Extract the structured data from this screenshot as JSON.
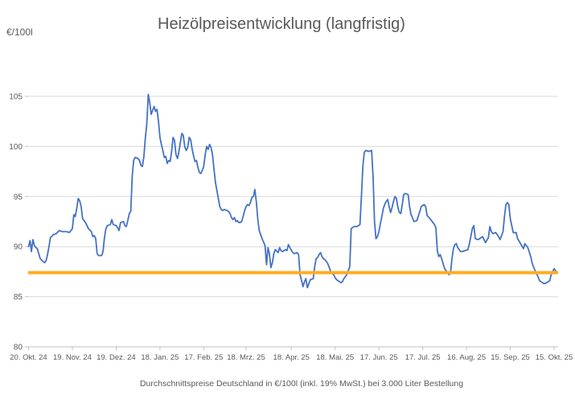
{
  "header": {
    "title": "Heizölpreisentwicklung (langfristig)",
    "y_axis_unit": "€/100l"
  },
  "footer": {
    "note": "Durchschnittspreise Deutschland in €/100l (inkl. 19% MwSt.) bei 3.000 Liter Bestellung"
  },
  "chart_data": {
    "type": "line",
    "title": "Heizölpreisentwicklung (langfristig)",
    "ylabel": "€/100l",
    "xlabel": "",
    "grid": "horizontal-only",
    "legend": "none",
    "ylim": [
      80,
      106.5
    ],
    "y_ticks": [
      80,
      85,
      90,
      95,
      100,
      105
    ],
    "x_tick_days": [
      0,
      30,
      60,
      90,
      120,
      149,
      180,
      210,
      240,
      270,
      300,
      330,
      360
    ],
    "x_tick_labels": [
      "20. Okt. 24",
      "19. Nov. 24",
      "19. Dez. 24",
      "18. Jan. 25",
      "17. Feb. 25",
      "18. Mrz. 25",
      "18. Apr. 25",
      "18. Mai. 25",
      "17. Jun. 25",
      "17. Jul. 25",
      "16. Aug. 25",
      "15. Sep. 25",
      "15. Okt. 25"
    ],
    "colors": {
      "series_line": "#4472C4",
      "threshold_line": "#FFAD21",
      "grid": "#D9D9D9",
      "axis": "#BFBFBF",
      "text": "#595959"
    },
    "threshold": {
      "value": 87.4
    },
    "series": [
      {
        "points": [
          [
            0,
            90.0
          ],
          [
            1,
            90.6
          ],
          [
            2,
            89.5
          ],
          [
            3,
            90.7
          ],
          [
            4,
            90.1
          ],
          [
            5,
            89.9
          ],
          [
            6,
            89.8
          ],
          [
            8,
            88.8
          ],
          [
            10,
            88.5
          ],
          [
            11,
            88.4
          ],
          [
            12,
            88.6
          ],
          [
            13,
            89.2
          ],
          [
            14,
            90.0
          ],
          [
            15,
            90.9
          ],
          [
            17,
            91.2
          ],
          [
            19,
            91.3
          ],
          [
            21,
            91.6
          ],
          [
            23,
            91.5
          ],
          [
            26,
            91.5
          ],
          [
            28,
            91.4
          ],
          [
            30,
            91.8
          ],
          [
            31,
            93.2
          ],
          [
            32,
            93.0
          ],
          [
            33,
            93.8
          ],
          [
            34,
            94.8
          ],
          [
            35,
            94.6
          ],
          [
            36,
            94.0
          ],
          [
            37,
            92.8
          ],
          [
            39,
            92.4
          ],
          [
            41,
            91.8
          ],
          [
            43,
            91.5
          ],
          [
            44,
            91.0
          ],
          [
            45,
            91.1
          ],
          [
            46,
            90.8
          ],
          [
            47,
            89.3
          ],
          [
            48,
            89.1
          ],
          [
            50,
            89.1
          ],
          [
            51,
            89.5
          ],
          [
            52,
            90.9
          ],
          [
            53,
            91.8
          ],
          [
            54,
            92.1
          ],
          [
            56,
            92.2
          ],
          [
            57,
            92.7
          ],
          [
            58,
            92.2
          ],
          [
            60,
            92.1
          ],
          [
            61,
            91.9
          ],
          [
            62,
            91.6
          ],
          [
            63,
            92.4
          ],
          [
            65,
            92.5
          ],
          [
            66,
            92.1
          ],
          [
            67,
            92.0
          ],
          [
            68,
            92.6
          ],
          [
            69,
            93.3
          ],
          [
            70,
            93.5
          ],
          [
            71,
            97.0
          ],
          [
            72,
            98.6
          ],
          [
            73,
            98.9
          ],
          [
            75,
            98.8
          ],
          [
            76,
            98.6
          ],
          [
            77,
            98.1
          ],
          [
            78,
            98.0
          ],
          [
            79,
            99.0
          ],
          [
            80,
            100.8
          ],
          [
            81,
            102.2
          ],
          [
            82,
            105.2
          ],
          [
            83,
            104.4
          ],
          [
            84,
            103.2
          ],
          [
            85,
            103.6
          ],
          [
            86,
            104.0
          ],
          [
            87,
            103.5
          ],
          [
            88,
            103.7
          ],
          [
            89,
            102.5
          ],
          [
            90,
            100.9
          ],
          [
            91,
            100.2
          ],
          [
            92,
            99.6
          ],
          [
            93,
            98.9
          ],
          [
            94,
            99.0
          ],
          [
            95,
            98.3
          ],
          [
            96,
            98.6
          ],
          [
            97,
            98.5
          ],
          [
            98,
            99.5
          ],
          [
            99,
            100.9
          ],
          [
            100,
            100.6
          ],
          [
            101,
            99.2
          ],
          [
            102,
            98.8
          ],
          [
            103,
            99.5
          ],
          [
            105,
            101.3
          ],
          [
            106,
            101.1
          ],
          [
            107,
            100.0
          ],
          [
            108,
            99.6
          ],
          [
            109,
            99.9
          ],
          [
            110,
            100.9
          ],
          [
            111,
            100.7
          ],
          [
            112,
            99.8
          ],
          [
            113,
            99.1
          ],
          [
            114,
            98.5
          ],
          [
            115,
            98.6
          ],
          [
            116,
            97.9
          ],
          [
            117,
            97.4
          ],
          [
            118,
            97.3
          ],
          [
            119,
            97.6
          ],
          [
            120,
            98.0
          ],
          [
            121,
            99.2
          ],
          [
            122,
            100.0
          ],
          [
            123,
            99.7
          ],
          [
            124,
            100.2
          ],
          [
            125,
            99.9
          ],
          [
            126,
            99.2
          ],
          [
            127,
            97.8
          ],
          [
            128,
            96.4
          ],
          [
            129,
            95.6
          ],
          [
            130,
            94.8
          ],
          [
            131,
            94.0
          ],
          [
            132,
            93.7
          ],
          [
            133,
            93.6
          ],
          [
            134,
            93.7
          ],
          [
            136,
            93.6
          ],
          [
            137,
            93.5
          ],
          [
            138,
            93.3
          ],
          [
            139,
            92.9
          ],
          [
            140,
            92.7
          ],
          [
            141,
            92.9
          ],
          [
            142,
            92.5
          ],
          [
            143,
            92.6
          ],
          [
            144,
            92.4
          ],
          [
            145,
            92.4
          ],
          [
            146,
            92.5
          ],
          [
            147,
            93.0
          ],
          [
            148,
            93.6
          ],
          [
            149,
            94.0
          ],
          [
            150,
            94.2
          ],
          [
            151,
            94.1
          ],
          [
            152,
            94.4
          ],
          [
            153,
            94.9
          ],
          [
            154,
            95.0
          ],
          [
            155,
            95.7
          ],
          [
            156,
            94.5
          ],
          [
            157,
            92.8
          ],
          [
            158,
            91.6
          ],
          [
            160,
            90.8
          ],
          [
            162,
            90.1
          ],
          [
            163,
            88.2
          ],
          [
            164,
            89.9
          ],
          [
            165,
            89.3
          ],
          [
            166,
            87.9
          ],
          [
            167,
            88.4
          ],
          [
            168,
            89.3
          ],
          [
            169,
            89.7
          ],
          [
            171,
            89.4
          ],
          [
            172,
            89.9
          ],
          [
            173,
            89.6
          ],
          [
            174,
            89.5
          ],
          [
            176,
            89.7
          ],
          [
            177,
            89.6
          ],
          [
            178,
            90.2
          ],
          [
            179,
            89.9
          ],
          [
            181,
            89.4
          ],
          [
            182,
            89.3
          ],
          [
            184,
            89.4
          ],
          [
            185,
            89.2
          ],
          [
            186,
            87.2
          ],
          [
            187,
            86.6
          ],
          [
            188,
            86.0
          ],
          [
            189,
            86.5
          ],
          [
            190,
            86.8
          ],
          [
            191,
            85.9
          ],
          [
            192,
            86.3
          ],
          [
            193,
            86.7
          ],
          [
            195,
            86.8
          ],
          [
            196,
            88.0
          ],
          [
            197,
            88.8
          ],
          [
            198,
            88.9
          ],
          [
            199,
            89.2
          ],
          [
            200,
            89.4
          ],
          [
            201,
            89.0
          ],
          [
            202,
            88.8
          ],
          [
            203,
            88.7
          ],
          [
            204,
            88.5
          ],
          [
            205,
            88.3
          ],
          [
            206,
            87.9
          ],
          [
            207,
            87.5
          ],
          [
            208,
            87.3
          ],
          [
            209,
            87.2
          ],
          [
            210,
            86.9
          ],
          [
            211,
            86.7
          ],
          [
            212,
            86.6
          ],
          [
            213,
            86.5
          ],
          [
            214,
            86.4
          ],
          [
            215,
            86.5
          ],
          [
            216,
            86.8
          ],
          [
            217,
            87.0
          ],
          [
            218,
            87.2
          ],
          [
            219,
            87.6
          ],
          [
            220,
            88.0
          ],
          [
            221,
            91.8
          ],
          [
            222,
            91.9
          ],
          [
            223,
            92.0
          ],
          [
            225,
            92.0
          ],
          [
            227,
            92.2
          ],
          [
            228,
            95.0
          ],
          [
            229,
            98.0
          ],
          [
            230,
            99.4
          ],
          [
            231,
            99.6
          ],
          [
            233,
            99.5
          ],
          [
            235,
            99.6
          ],
          [
            236,
            97.0
          ],
          [
            237,
            92.5
          ],
          [
            238,
            90.8
          ],
          [
            239,
            91.0
          ],
          [
            240,
            91.5
          ],
          [
            241,
            92.3
          ],
          [
            242,
            93.0
          ],
          [
            243,
            93.8
          ],
          [
            244,
            94.2
          ],
          [
            245,
            94.5
          ],
          [
            246,
            94.7
          ],
          [
            247,
            94.0
          ],
          [
            248,
            93.4
          ],
          [
            249,
            93.9
          ],
          [
            250,
            94.5
          ],
          [
            251,
            95.0
          ],
          [
            252,
            94.8
          ],
          [
            253,
            93.9
          ],
          [
            254,
            93.4
          ],
          [
            255,
            93.3
          ],
          [
            256,
            94.2
          ],
          [
            257,
            95.2
          ],
          [
            258,
            95.3
          ],
          [
            260,
            95.2
          ],
          [
            261,
            94.0
          ],
          [
            262,
            93.2
          ],
          [
            263,
            92.9
          ],
          [
            264,
            92.5
          ],
          [
            266,
            92.6
          ],
          [
            268,
            93.5
          ],
          [
            269,
            94.0
          ],
          [
            271,
            94.2
          ],
          [
            272,
            94.0
          ],
          [
            273,
            93.1
          ],
          [
            275,
            92.8
          ],
          [
            276,
            92.6
          ],
          [
            278,
            92.2
          ],
          [
            279,
            91.9
          ],
          [
            280,
            89.6
          ],
          [
            281,
            89.0
          ],
          [
            282,
            89.2
          ],
          [
            283,
            88.8
          ],
          [
            284,
            88.3
          ],
          [
            285,
            87.8
          ],
          [
            287,
            87.4
          ],
          [
            288,
            87.2
          ],
          [
            289,
            87.3
          ],
          [
            290,
            88.7
          ],
          [
            291,
            89.8
          ],
          [
            292,
            90.2
          ],
          [
            293,
            90.3
          ],
          [
            294,
            89.9
          ],
          [
            296,
            89.5
          ],
          [
            297,
            89.5
          ],
          [
            299,
            89.6
          ],
          [
            301,
            89.7
          ],
          [
            302,
            90.3
          ],
          [
            304,
            91.8
          ],
          [
            305,
            92.1
          ],
          [
            306,
            90.8
          ],
          [
            308,
            90.7
          ],
          [
            310,
            90.9
          ],
          [
            311,
            91.0
          ],
          [
            313,
            90.4
          ],
          [
            315,
            90.9
          ],
          [
            316,
            92.0
          ],
          [
            317,
            91.5
          ],
          [
            318,
            91.3
          ],
          [
            320,
            91.4
          ],
          [
            322,
            91.0
          ],
          [
            323,
            90.7
          ],
          [
            325,
            91.5
          ],
          [
            326,
            93.0
          ],
          [
            327,
            94.2
          ],
          [
            328,
            94.4
          ],
          [
            329,
            94.2
          ],
          [
            330,
            92.8
          ],
          [
            332,
            91.4
          ],
          [
            334,
            91.4
          ],
          [
            335,
            90.8
          ],
          [
            337,
            90.3
          ],
          [
            339,
            89.8
          ],
          [
            340,
            90.3
          ],
          [
            342,
            89.9
          ],
          [
            344,
            89.0
          ],
          [
            345,
            88.3
          ],
          [
            347,
            87.6
          ],
          [
            349,
            87.0
          ],
          [
            350,
            86.6
          ],
          [
            352,
            86.4
          ],
          [
            353,
            86.3
          ],
          [
            355,
            86.4
          ],
          [
            357,
            86.6
          ],
          [
            358,
            87.2
          ],
          [
            360,
            87.8
          ],
          [
            362,
            87.4
          ]
        ]
      }
    ]
  }
}
